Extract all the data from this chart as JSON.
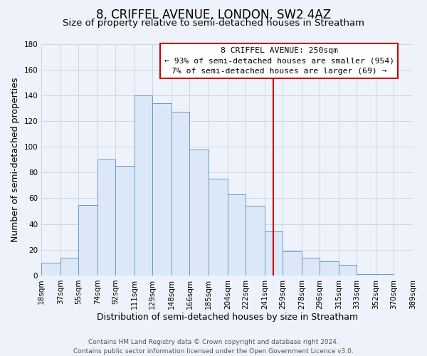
{
  "title": "8, CRIFFEL AVENUE, LONDON, SW2 4AZ",
  "subtitle": "Size of property relative to semi-detached houses in Streatham",
  "xlabel": "Distribution of semi-detached houses by size in Streatham",
  "ylabel": "Number of semi-detached properties",
  "bin_edges": [
    18,
    37,
    55,
    74,
    92,
    111,
    129,
    148,
    166,
    185,
    204,
    222,
    241,
    259,
    278,
    296,
    315,
    333,
    352,
    370,
    389
  ],
  "bin_labels": [
    "18sqm",
    "37sqm",
    "55sqm",
    "74sqm",
    "92sqm",
    "111sqm",
    "129sqm",
    "148sqm",
    "166sqm",
    "185sqm",
    "204sqm",
    "222sqm",
    "241sqm",
    "259sqm",
    "278sqm",
    "296sqm",
    "315sqm",
    "333sqm",
    "352sqm",
    "370sqm",
    "389sqm"
  ],
  "counts": [
    10,
    14,
    55,
    90,
    85,
    140,
    134,
    127,
    98,
    75,
    63,
    54,
    34,
    19,
    14,
    11,
    8,
    1,
    1,
    0
  ],
  "bar_color": "#dce8f8",
  "bar_edge_color": "#6699cc",
  "property_value": 250,
  "vline_color": "#cc0000",
  "annotation_title": "8 CRIFFEL AVENUE: 250sqm",
  "annotation_line1": "← 93% of semi-detached houses are smaller (954)",
  "annotation_line2": "7% of semi-detached houses are larger (69) →",
  "annotation_box_facecolor": "#ffffff",
  "annotation_box_edgecolor": "#cc0000",
  "ylim": [
    0,
    180
  ],
  "yticks": [
    0,
    20,
    40,
    60,
    80,
    100,
    120,
    140,
    160,
    180
  ],
  "footer_line1": "Contains HM Land Registry data © Crown copyright and database right 2024.",
  "footer_line2": "Contains public sector information licensed under the Open Government Licence v3.0.",
  "background_color": "#eef2fa",
  "grid_color": "#c8d0e0",
  "title_fontsize": 12,
  "subtitle_fontsize": 9.5,
  "axis_label_fontsize": 9,
  "tick_fontsize": 7.5,
  "footer_fontsize": 6.5
}
